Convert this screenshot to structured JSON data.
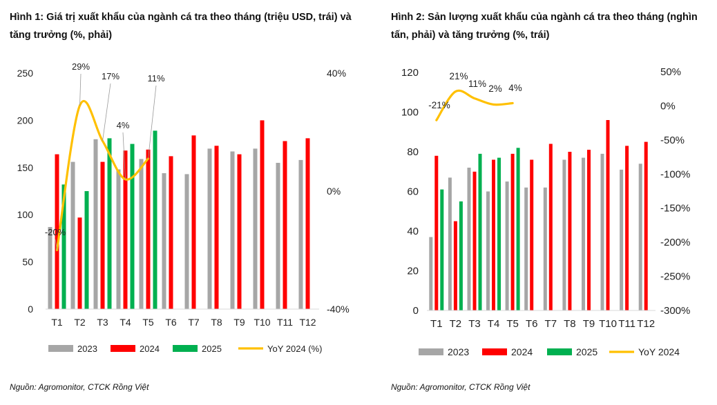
{
  "colors": {
    "y2023": "#a6a6a6",
    "y2024": "#ff0000",
    "y2025": "#00b050",
    "yoy": "#ffc000"
  },
  "chart_data": [
    {
      "type": "bar",
      "title": "Hình 1: Giá trị xuất khẩu của ngành cá tra theo tháng (triệu USD, trái) và tăng trưởng (%, phải)",
      "source": "Nguồn: Agromonitor, CTCK Rồng Việt",
      "categories": [
        "T1",
        "T2",
        "T3",
        "T4",
        "T5",
        "T6",
        "T7",
        "T8",
        "T9",
        "T10",
        "T11",
        "T12"
      ],
      "series": [
        {
          "name": "2023",
          "axis": "left",
          "values": [
            87,
            156,
            180,
            148,
            159,
            144,
            143,
            170,
            167,
            170,
            155,
            158
          ]
        },
        {
          "name": "2024",
          "axis": "left",
          "values": [
            164,
            97,
            156,
            168,
            169,
            162,
            184,
            173,
            164,
            200,
            178,
            181
          ]
        },
        {
          "name": "2025",
          "axis": "left",
          "values": [
            132,
            125,
            181,
            175,
            189,
            null,
            null,
            null,
            null,
            null,
            null,
            null
          ]
        },
        {
          "name": "YoY 2024 (%)",
          "axis": "right",
          "type": "line",
          "values": [
            -20,
            29,
            17,
            4,
            11,
            null,
            null,
            null,
            null,
            null,
            null,
            null
          ]
        }
      ],
      "left_axis": {
        "ylim": [
          0,
          250
        ],
        "ticks": [
          "0",
          "50",
          "100",
          "150",
          "200",
          "250"
        ]
      },
      "right_axis": {
        "ylim": [
          -40,
          40
        ],
        "ticks": [
          "-40%",
          "0%",
          "40%"
        ]
      },
      "data_labels": [
        "-20%",
        "29%",
        "17%",
        "4%",
        "11%"
      ],
      "legend": [
        "2023",
        "2024",
        "2025",
        "YoY 2024 (%)"
      ],
      "legend_position": "bottom"
    },
    {
      "type": "bar",
      "title": "Hình 2: Sản lượng xuất khẩu của ngành cá tra theo tháng (nghìn tấn, phải) và tăng trưởng (%, trái)",
      "source": "Nguồn: Agromonitor, CTCK Rồng Việt",
      "categories": [
        "T1",
        "T2",
        "T3",
        "T4",
        "T5",
        "T6",
        "T7",
        "T8",
        "T9",
        "T10",
        "T11",
        "T12"
      ],
      "series": [
        {
          "name": "2023",
          "axis": "left",
          "values": [
            37,
            67,
            72,
            60,
            65,
            62,
            62,
            76,
            77,
            79,
            71,
            74
          ]
        },
        {
          "name": "2024",
          "axis": "left",
          "values": [
            78,
            45,
            70,
            76,
            79,
            76,
            84,
            80,
            81,
            96,
            83,
            85
          ]
        },
        {
          "name": "2025",
          "axis": "left",
          "values": [
            61,
            55,
            79,
            77,
            82,
            null,
            null,
            null,
            null,
            null,
            null,
            null
          ]
        },
        {
          "name": "YoY 2024",
          "axis": "right",
          "type": "line",
          "values": [
            -21,
            21,
            11,
            2,
            4,
            null,
            null,
            null,
            null,
            null,
            null,
            null
          ]
        }
      ],
      "left_axis": {
        "ylim": [
          0,
          120
        ],
        "ticks": [
          "0",
          "20",
          "40",
          "60",
          "80",
          "100",
          "120"
        ]
      },
      "right_axis": {
        "ylim": [
          -300,
          50
        ],
        "ticks": [
          "-300%",
          "-250%",
          "-200%",
          "-150%",
          "-100%",
          "-50%",
          "0%",
          "50%"
        ]
      },
      "data_labels": [
        "-21%",
        "21%",
        "11%",
        "2%",
        "4%"
      ],
      "legend": [
        "2023",
        "2024",
        "2025",
        "YoY 2024"
      ],
      "legend_position": "bottom"
    }
  ]
}
